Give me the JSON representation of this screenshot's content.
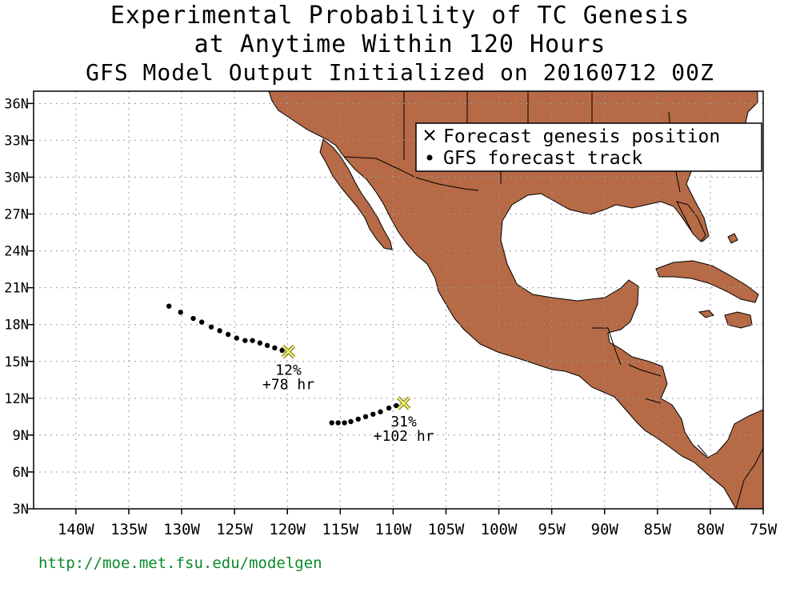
{
  "title": {
    "line1": "Experimental Probability of TC Genesis",
    "line2": "at Anytime Within 120 Hours",
    "line3": "GFS Model Output Initialized on 20160712 00Z"
  },
  "footer_url": "http://moe.met.fsu.edu/modelgen",
  "colors": {
    "land": "#b66a46",
    "ocean": "#ffffff",
    "marker": "#f2f06a",
    "footer": "#0b8a2a"
  },
  "map": {
    "lon_range": [
      -144,
      -75
    ],
    "lat_range": [
      3,
      37
    ],
    "lon_ticks": [
      {
        "lon": -140,
        "label": "140W"
      },
      {
        "lon": -135,
        "label": "135W"
      },
      {
        "lon": -130,
        "label": "130W"
      },
      {
        "lon": -125,
        "label": "125W"
      },
      {
        "lon": -120,
        "label": "120W"
      },
      {
        "lon": -115,
        "label": "115W"
      },
      {
        "lon": -110,
        "label": "110W"
      },
      {
        "lon": -105,
        "label": "105W"
      },
      {
        "lon": -100,
        "label": "100W"
      },
      {
        "lon": -95,
        "label": "95W"
      },
      {
        "lon": -90,
        "label": "90W"
      },
      {
        "lon": -85,
        "label": "85W"
      },
      {
        "lon": -80,
        "label": "80W"
      },
      {
        "lon": -75,
        "label": "75W"
      }
    ],
    "lat_ticks": [
      {
        "lat": 3,
        "label": "3N"
      },
      {
        "lat": 6,
        "label": "6N"
      },
      {
        "lat": 9,
        "label": "9N"
      },
      {
        "lat": 12,
        "label": "12N"
      },
      {
        "lat": 15,
        "label": "15N"
      },
      {
        "lat": 18,
        "label": "18N"
      },
      {
        "lat": 21,
        "label": "21N"
      },
      {
        "lat": 24,
        "label": "24N"
      },
      {
        "lat": 27,
        "label": "27N"
      },
      {
        "lat": 30,
        "label": "30N"
      },
      {
        "lat": 33,
        "label": "33N"
      },
      {
        "lat": 36,
        "label": "36N"
      }
    ]
  },
  "legend": {
    "genesis_label": "Forecast genesis position",
    "track_label": "GFS forecast track"
  },
  "systems": [
    {
      "genesis": {
        "lon": -119.9,
        "lat": 15.8
      },
      "probability": "12%",
      "lead_time": "+78 hr",
      "track": [
        {
          "lon": -131.2,
          "lat": 19.5
        },
        {
          "lon": -130.1,
          "lat": 19.0
        },
        {
          "lon": -128.9,
          "lat": 18.5
        },
        {
          "lon": -128.1,
          "lat": 18.2
        },
        {
          "lon": -127.2,
          "lat": 17.8
        },
        {
          "lon": -126.4,
          "lat": 17.5
        },
        {
          "lon": -125.6,
          "lat": 17.2
        },
        {
          "lon": -124.8,
          "lat": 16.9
        },
        {
          "lon": -124.0,
          "lat": 16.7
        },
        {
          "lon": -123.3,
          "lat": 16.7
        },
        {
          "lon": -122.6,
          "lat": 16.5
        },
        {
          "lon": -121.9,
          "lat": 16.3
        },
        {
          "lon": -121.2,
          "lat": 16.1
        },
        {
          "lon": -120.5,
          "lat": 15.9
        }
      ]
    },
    {
      "genesis": {
        "lon": -109.0,
        "lat": 11.6
      },
      "probability": "31%",
      "lead_time": "+102 hr",
      "track": [
        {
          "lon": -115.8,
          "lat": 10.0
        },
        {
          "lon": -115.2,
          "lat": 10.0
        },
        {
          "lon": -114.6,
          "lat": 10.0
        },
        {
          "lon": -114.0,
          "lat": 10.1
        },
        {
          "lon": -113.3,
          "lat": 10.3
        },
        {
          "lon": -112.6,
          "lat": 10.5
        },
        {
          "lon": -111.9,
          "lat": 10.7
        },
        {
          "lon": -111.2,
          "lat": 10.9
        },
        {
          "lon": -110.4,
          "lat": 11.2
        },
        {
          "lon": -109.7,
          "lat": 11.4
        }
      ]
    }
  ]
}
